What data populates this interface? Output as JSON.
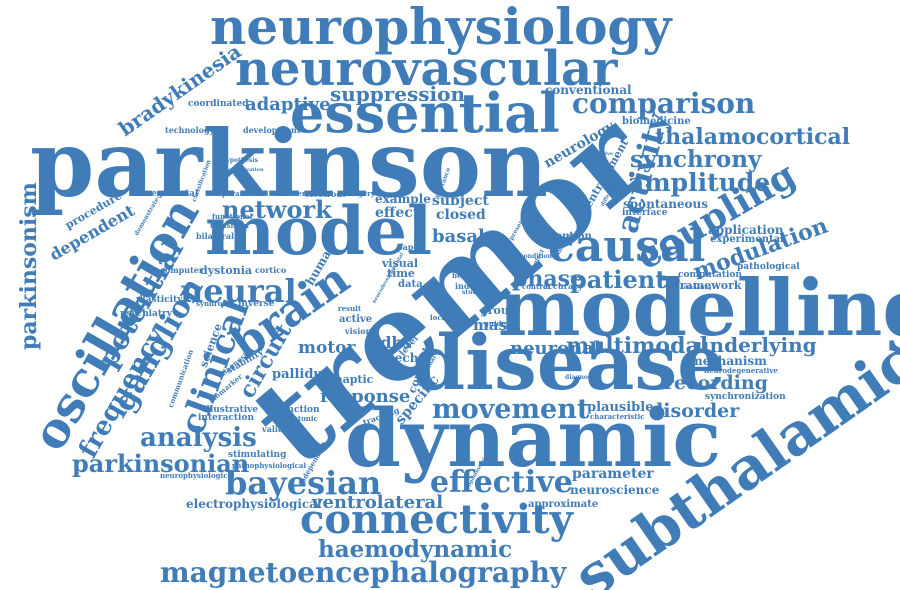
{
  "color": "#3f7cb8",
  "words": [
    {
      "id": "tremor",
      "text": "tremor",
      "rot": -40
    },
    {
      "id": "parkinson",
      "text": "parkinson",
      "rot": 0
    },
    {
      "id": "dynamic",
      "text": "dynamic",
      "rot": 0
    },
    {
      "id": "modelling",
      "text": "modelling",
      "rot": 0
    },
    {
      "id": "disease",
      "text": "disease",
      "rot": 0
    },
    {
      "id": "model",
      "text": "model",
      "rot": 0
    },
    {
      "id": "subthalamic",
      "text": "subthalamic",
      "rot": -35
    },
    {
      "id": "neurophysiology",
      "text": "neurophysiology",
      "rot": 0
    },
    {
      "id": "essential",
      "text": "essential",
      "rot": 0
    },
    {
      "id": "neurovascular",
      "text": "neurovascular",
      "rot": 0
    },
    {
      "id": "oscillation",
      "text": "oscillation",
      "rot": -60
    },
    {
      "id": "connectivity",
      "text": "connectivity",
      "rot": 0
    },
    {
      "id": "causal",
      "text": "causal",
      "rot": 0
    },
    {
      "id": "brain",
      "text": "brain",
      "rot": -35
    },
    {
      "id": "magnetoencephalography",
      "text": "magnetoencephalography",
      "rot": 0
    },
    {
      "id": "bayesian",
      "text": "bayesian",
      "rot": 0
    },
    {
      "id": "coupling",
      "text": "coupling",
      "rot": -30
    },
    {
      "id": "comparison",
      "text": "comparison",
      "rot": 0
    },
    {
      "id": "effective",
      "text": "effective",
      "rot": 0
    },
    {
      "id": "neural",
      "text": "neural",
      "rot": 0
    },
    {
      "id": "amplitude",
      "text": "amplitude",
      "rot": 0
    },
    {
      "id": "thalamocortical",
      "text": "thalamocortical",
      "rot": 0
    },
    {
      "id": "synchrony",
      "text": "synchrony",
      "rot": 0
    },
    {
      "id": "movement",
      "text": "movement",
      "rot": 0
    },
    {
      "id": "clinical",
      "text": "clinical",
      "rot": -70
    },
    {
      "id": "network",
      "text": "network",
      "rot": 0
    },
    {
      "id": "analysis",
      "text": "analysis",
      "rot": 0
    },
    {
      "id": "parkinsonian",
      "text": "parkinsonian",
      "rot": 0
    },
    {
      "id": "ganglion",
      "text": "ganglion",
      "rot": -60
    },
    {
      "id": "haemodynamic",
      "text": "haemodynamic",
      "rot": 0
    },
    {
      "id": "activity",
      "text": "activity",
      "rot": -75
    },
    {
      "id": "potential",
      "text": "potential",
      "rot": -60
    },
    {
      "id": "frequency",
      "text": "frequency",
      "rot": -60
    },
    {
      "id": "bradykinesia",
      "text": "bradykinesia",
      "rot": -35
    },
    {
      "id": "suppression",
      "text": "suppression",
      "rot": 0
    },
    {
      "id": "modulation",
      "text": "modulation",
      "rot": -20
    },
    {
      "id": "multimodal",
      "text": "multimodal",
      "rot": 0
    },
    {
      "id": "parkinsonism",
      "text": "parkinsonism",
      "rot": -90
    },
    {
      "id": "patient",
      "text": "patient",
      "rot": 0
    },
    {
      "id": "phase",
      "text": "phase",
      "rot": 0
    },
    {
      "id": "adaptive",
      "text": "adaptive",
      "rot": 0
    },
    {
      "id": "underlying",
      "text": "underlying",
      "rot": 0
    },
    {
      "id": "disorder",
      "text": "disorder",
      "rot": 0
    },
    {
      "id": "response",
      "text": "response",
      "rot": 0
    },
    {
      "id": "recording",
      "text": "recording",
      "rot": 0
    },
    {
      "id": "ventrolateral",
      "text": "ventrolateral",
      "rot": 0
    },
    {
      "id": "circuit",
      "text": "circuit",
      "rot": -60
    },
    {
      "id": "basal",
      "text": "basal",
      "rot": 0
    },
    {
      "id": "neuronal",
      "text": "neuronal",
      "rot": 0
    },
    {
      "id": "dependent",
      "text": "dependent",
      "rot": -30
    },
    {
      "id": "motor",
      "text": "motor",
      "rot": 0
    },
    {
      "id": "parameter",
      "text": "parameter",
      "rot": 0
    },
    {
      "id": "neurology",
      "text": "neurology",
      "rot": -30
    },
    {
      "id": "conventional",
      "text": "conventional",
      "rot": 0
    },
    {
      "id": "adbs",
      "text": "adbs",
      "rot": 0
    },
    {
      "id": "mas",
      "text": "mas",
      "rot": 0
    },
    {
      "id": "specific",
      "text": "specific",
      "rot": -50
    },
    {
      "id": "plausible",
      "text": "plausible",
      "rot": 0
    },
    {
      "id": "mechanism",
      "text": "mechanism",
      "rot": 0
    },
    {
      "id": "neuroscience",
      "text": "neuroscience",
      "rot": 0
    },
    {
      "id": "application",
      "text": "application",
      "rot": 0
    },
    {
      "id": "spontaneous",
      "text": "spontaneous",
      "rot": 0
    },
    {
      "id": "framework",
      "text": "framework",
      "rot": 0
    },
    {
      "id": "experimental",
      "text": "experimental",
      "rot": 0
    },
    {
      "id": "pathological",
      "text": "pathological",
      "rot": 0
    },
    {
      "id": "computation",
      "text": "computation",
      "rot": 0
    },
    {
      "id": "entrainment",
      "text": "entrainment",
      "rot": -60
    },
    {
      "id": "biomedicine",
      "text": "biomedicine",
      "rot": 0
    },
    {
      "id": "interface",
      "text": "interface",
      "rot": 0
    },
    {
      "id": "attention",
      "text": "attention",
      "rot": 0
    },
    {
      "id": "synchronization",
      "text": "synchronization",
      "rot": 0
    },
    {
      "id": "neurodegenerative",
      "text": "neurodegenerative",
      "rot": 0
    },
    {
      "id": "approximate",
      "text": "approximate",
      "rot": 0
    },
    {
      "id": "characteristic",
      "text": "characteristic",
      "rot": 0
    },
    {
      "id": "electrophysiological",
      "text": "electrophysiological",
      "rot": 0
    },
    {
      "id": "stimulating",
      "text": "stimulating",
      "rot": 0
    },
    {
      "id": "pathophysiological",
      "text": "pathophysiological",
      "rot": 0
    },
    {
      "id": "neurophysiological",
      "text": "neurophysiological",
      "rot": 0
    },
    {
      "id": "illustrative",
      "text": "illustrative",
      "rot": 0
    },
    {
      "id": "interaction",
      "text": "interaction",
      "rot": 0
    },
    {
      "id": "validation",
      "text": "validation",
      "rot": 0
    },
    {
      "id": "function",
      "text": "function",
      "rot": 0
    },
    {
      "id": "dystonic",
      "text": "dystonic",
      "rot": 0
    },
    {
      "id": "pallidus",
      "text": "pallidus",
      "rot": 0
    },
    {
      "id": "stability",
      "text": "stability",
      "rot": -30
    },
    {
      "id": "dystonia",
      "text": "dystonia",
      "rot": 0
    },
    {
      "id": "computer",
      "text": "computer",
      "rot": 0
    },
    {
      "id": "cortico",
      "text": "cortico",
      "rot": 0
    },
    {
      "id": "science",
      "text": "science",
      "rot": -70
    },
    {
      "id": "psychiatry",
      "text": "psychiatry",
      "rot": 0
    },
    {
      "id": "plasticity",
      "text": "plasticity",
      "rot": 0
    },
    {
      "id": "bilateral",
      "text": "bilateral",
      "rot": 0
    },
    {
      "id": "procedure",
      "text": "procedure",
      "rot": -30
    },
    {
      "id": "segmental",
      "text": "segmental",
      "rot": 0
    },
    {
      "id": "technology",
      "text": "technology",
      "rot": 0
    },
    {
      "id": "coordinated",
      "text": "coordinated",
      "rot": 0
    },
    {
      "id": "development",
      "text": "development",
      "rot": 0
    },
    {
      "id": "effect",
      "text": "effect",
      "rot": 0
    },
    {
      "id": "closed",
      "text": "closed",
      "rot": 0
    },
    {
      "id": "subject",
      "text": "subject",
      "rot": 0
    },
    {
      "id": "example",
      "text": "example",
      "rot": 0
    },
    {
      "id": "data",
      "text": "data",
      "rot": 0
    },
    {
      "id": "time",
      "text": "time",
      "rot": 0
    },
    {
      "id": "visual",
      "text": "visual",
      "rot": 0
    },
    {
      "id": "synaptic",
      "text": "synaptic",
      "rot": 0
    },
    {
      "id": "speech",
      "text": "speech",
      "rot": 0
    },
    {
      "id": "cortical",
      "text": "cortical",
      "rot": -70
    },
    {
      "id": "group",
      "text": "group",
      "rot": 0
    },
    {
      "id": "active",
      "text": "active",
      "rot": 0
    },
    {
      "id": "vision",
      "text": "vision",
      "rot": 0
    },
    {
      "id": "human",
      "text": "human",
      "rot": -60
    },
    {
      "id": "level",
      "text": "level",
      "rot": -50
    },
    {
      "id": "surgery",
      "text": "surgery",
      "rot": 0
    },
    {
      "id": "electrode",
      "text": "electrode",
      "rot": 0
    },
    {
      "id": "paper",
      "text": "paper",
      "rot": 0
    },
    {
      "id": "result",
      "text": "result",
      "rot": 0
    },
    {
      "id": "tracking",
      "text": "tracking",
      "rot": -20
    },
    {
      "id": "differences",
      "text": "differences",
      "rot": 0
    },
    {
      "id": "inverse",
      "text": "inverse",
      "rot": 0
    },
    {
      "id": "syndrome",
      "text": "syndrome",
      "rot": 0
    },
    {
      "id": "communication",
      "text": "communication",
      "rot": -70
    },
    {
      "id": "biomarker",
      "text": "biomarker",
      "rot": -40
    },
    {
      "id": "independent",
      "text": "independent",
      "rot": -60
    },
    {
      "id": "diagnosis",
      "text": "diagnosis",
      "rot": -40
    },
    {
      "id": "transition",
      "text": "transition",
      "rot": 0
    },
    {
      "id": "functional",
      "text": "functional",
      "rot": 0
    },
    {
      "id": "parametric",
      "text": "parametric",
      "rot": 0
    },
    {
      "id": "different",
      "text": "different",
      "rot": 0
    },
    {
      "id": "hypothesis",
      "text": "hypothesis",
      "rot": 0
    },
    {
      "id": "optimization",
      "text": "optimization",
      "rot": 0
    },
    {
      "id": "classification",
      "text": "classification",
      "rot": -70
    },
    {
      "id": "neurodevelopmental",
      "text": "neurodevelopmental",
      "rot": -60
    },
    {
      "id": "demonstrate",
      "text": "demonstrate",
      "rot": -60
    },
    {
      "id": "accuracy",
      "text": "accuracy",
      "rot": 0
    },
    {
      "id": "control",
      "text": "control",
      "rot": 0
    },
    {
      "id": "index",
      "text": "index",
      "rot": 0
    },
    {
      "id": "diagnostic",
      "text": "diagnostic",
      "rot": 0
    },
    {
      "id": "neglect",
      "text": "neglect",
      "rot": -60
    },
    {
      "id": "guide",
      "text": "guide",
      "rot": 0
    },
    {
      "id": "present",
      "text": "present",
      "rot": -60
    },
    {
      "id": "stimulus",
      "text": "stimulus",
      "rot": -60
    },
    {
      "id": "alternating",
      "text": "alternating",
      "rot": 0
    },
    {
      "id": "cumulative",
      "text": "cumulative",
      "rot": 0
    },
    {
      "id": "differential",
      "text": "differential",
      "rot": -60
    },
    {
      "id": "tolerance",
      "text": "tolerance",
      "rot": -70
    },
    {
      "id": "pyramidal",
      "text": "pyramidal",
      "rot": -60
    },
    {
      "id": "dopaminergic",
      "text": "dopaminergic",
      "rot": -60
    },
    {
      "id": "condition",
      "text": "condition",
      "rot": 0
    },
    {
      "id": "field",
      "text": "field",
      "rot": 0
    },
    {
      "id": "cycle",
      "text": "cycle",
      "rot": 0
    },
    {
      "id": "local",
      "text": "local",
      "rot": 0
    },
    {
      "id": "study",
      "text": "study",
      "rot": 0
    }
  ]
}
